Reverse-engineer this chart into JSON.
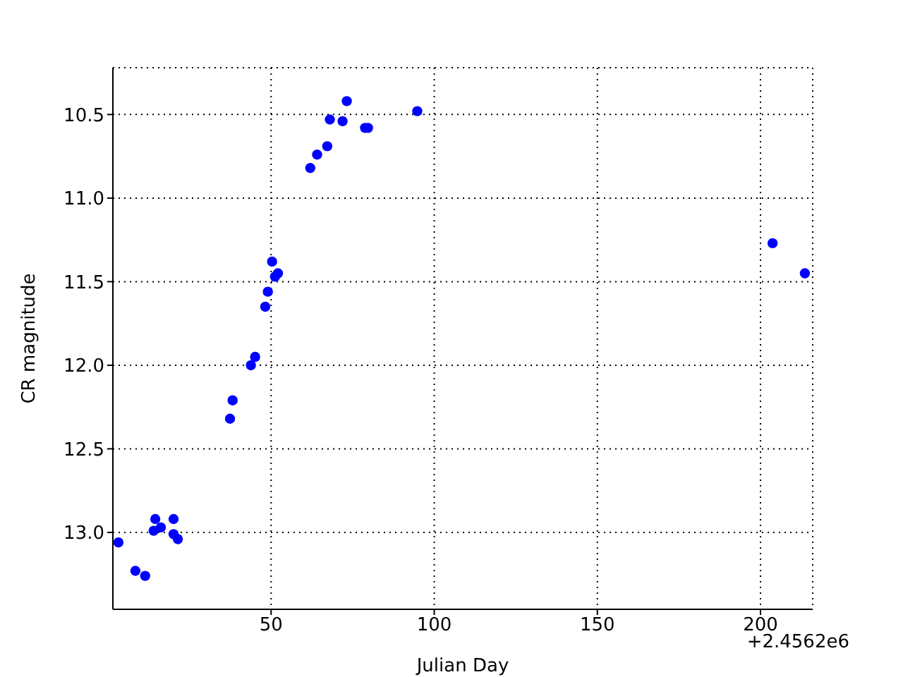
{
  "chart_data": {
    "type": "scatter",
    "xlabel": "Julian Day",
    "ylabel": "CR magnitude",
    "annotations": [
      "+2.4562e6"
    ],
    "x": [
      3.2,
      8.4,
      11.4,
      14.5,
      14.0,
      16.2,
      20.1,
      20.1,
      21.4,
      37.4,
      38.2,
      43.8,
      45.1,
      48.2,
      49.0,
      50.3,
      51.2,
      52.1,
      62.0,
      64.1,
      67.2,
      68.0,
      73.2,
      71.9,
      78.8,
      79.7,
      94.8,
      203.7,
      213.6
    ],
    "series": [
      {
        "color": "#0000ff",
        "values": [
          13.06,
          13.23,
          13.26,
          12.92,
          12.99,
          12.97,
          12.92,
          13.01,
          13.04,
          12.32,
          12.21,
          12.0,
          11.95,
          11.65,
          11.56,
          11.38,
          11.47,
          11.45,
          10.82,
          10.74,
          10.69,
          10.53,
          10.42,
          10.54,
          10.58,
          10.58,
          10.48,
          11.27,
          11.45
        ]
      }
    ],
    "xlim": [
      1.5,
      216
    ],
    "xticks": [
      50,
      100,
      150,
      200
    ],
    "ylim": [
      13.46,
      10.22
    ],
    "yticks": [
      10.5,
      {
        "value": 11,
        "label": "11.0"
      },
      11.5,
      {
        "value": 12,
        "label": "12.0"
      },
      12.5,
      {
        "value": 13,
        "label": "13.0"
      }
    ],
    "grid": true,
    "marker": "circle"
  }
}
